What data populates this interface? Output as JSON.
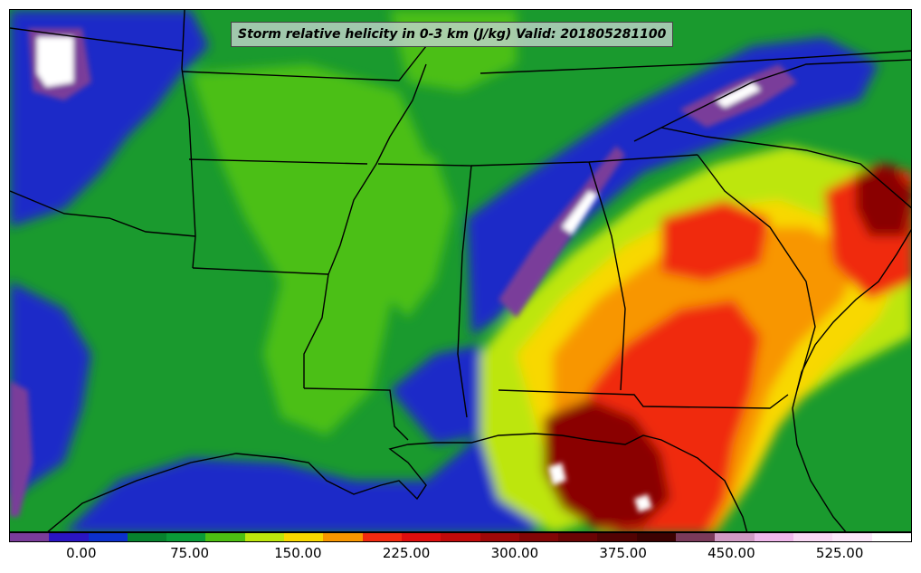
{
  "map": {
    "title": "Storm relative helicity in 0-3 km (J/kg) Valid: 201805281100",
    "variable": "Storm relative helicity",
    "layer": "0-3 km",
    "units": "J/kg",
    "valid_time": "201805281100",
    "region": "Southeastern United States",
    "palette": [
      "#7a3c9a",
      "#2a15c2",
      "#0c30cc",
      "#07822e",
      "#0a9a38",
      "#4cbf12",
      "#bde60c",
      "#f8d800",
      "#f89600",
      "#f02a10",
      "#dc0e0e",
      "#c00a0a",
      "#9e0808",
      "#820606",
      "#6a0404",
      "#520303",
      "#3c0202",
      "#7a3a5a",
      "#d09ac4",
      "#f0b8ec",
      "#f8d8f4",
      "#fbe8fa",
      "#ffffff"
    ],
    "colorbar": {
      "tick_labels": [
        "0.00",
        "75.00",
        "150.00",
        "225.00",
        "300.00",
        "375.00",
        "450.00",
        "525.00"
      ],
      "tick_values": [
        0,
        75,
        150,
        225,
        300,
        375,
        450,
        525
      ],
      "min": -50,
      "max": 575
    }
  }
}
